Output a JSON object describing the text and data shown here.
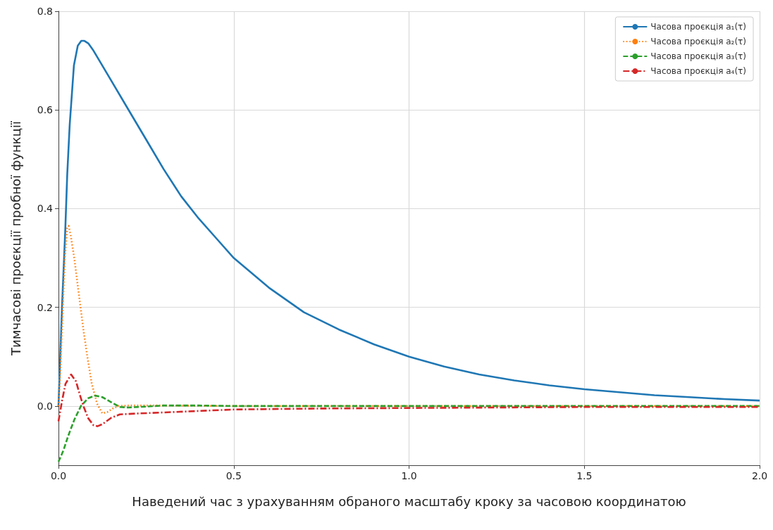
{
  "chart_data": {
    "type": "line",
    "xlabel": "Наведений час з урахуванням обраного масштабу кроку за часовою координатою",
    "ylabel": "Тимчасові проєкції пробної функції",
    "xlim": [
      0,
      2.0
    ],
    "xticks": [
      {
        "value": 0,
        "label": "0.0"
      },
      0.5,
      {
        "value": 1,
        "label": "1.0"
      },
      1.5,
      {
        "value": 2,
        "label": "2.0"
      }
    ],
    "ylim": [
      -0.12,
      0.8
    ],
    "yticks": [
      {
        "value": 0,
        "label": "0.0"
      },
      0.2,
      0.4,
      0.6,
      0.8
    ],
    "grid": true,
    "legend": "top right",
    "marker": "none",
    "series": [
      {
        "name": "Часова проєкція a₁(τ)",
        "color": "#1f77b4",
        "line_style": "solid",
        "x": [
          0,
          0.005,
          0.01,
          0.019,
          0.025,
          0.032,
          0.044,
          0.055,
          0.065,
          0.074,
          0.085,
          0.1,
          0.15,
          0.2,
          0.25,
          0.3,
          0.35,
          0.4,
          0.45,
          0.5,
          0.6,
          0.7,
          0.8,
          0.9,
          1.0,
          1.1,
          1.2,
          1.3,
          1.4,
          1.5,
          1.6,
          1.7,
          1.8,
          1.9,
          2.0
        ],
        "values": [
          0,
          0.1,
          0.2,
          0.35,
          0.47,
          0.57,
          0.69,
          0.73,
          0.74,
          0.74,
          0.735,
          0.72,
          0.66,
          0.6,
          0.54,
          0.48,
          0.425,
          0.38,
          0.34,
          0.3,
          0.24,
          0.19,
          0.155,
          0.125,
          0.1,
          0.08,
          0.064,
          0.052,
          0.042,
          0.034,
          0.028,
          0.022,
          0.018,
          0.014,
          0.011
        ]
      },
      {
        "name": "Часова проєкція a₂(τ)",
        "color": "#ff7f0e",
        "line_style": "dotted",
        "x": [
          0,
          0.005,
          0.01,
          0.018,
          0.025,
          0.029,
          0.035,
          0.045,
          0.06,
          0.072,
          0.083,
          0.095,
          0.11,
          0.125,
          0.14,
          0.155,
          0.17,
          0.2,
          0.3,
          0.5,
          1.0,
          1.5,
          2.0
        ],
        "values": [
          0,
          0.07,
          0.157,
          0.3,
          0.36,
          0.365,
          0.345,
          0.3,
          0.216,
          0.15,
          0.097,
          0.045,
          0.005,
          -0.015,
          -0.012,
          -0.005,
          0,
          0.001,
          0.001,
          0,
          0,
          0,
          0
        ]
      },
      {
        "name": "Часова проєкція a₃(τ)",
        "color": "#2ca02c",
        "line_style": "dashed",
        "x": [
          0,
          0.014,
          0.028,
          0.045,
          0.064,
          0.085,
          0.105,
          0.125,
          0.15,
          0.175,
          0.2,
          0.25,
          0.3,
          0.4,
          0.5,
          1.0,
          1.5,
          2.0
        ],
        "values": [
          -0.113,
          -0.09,
          -0.06,
          -0.028,
          0,
          0.016,
          0.021,
          0.018,
          0.008,
          -0.002,
          -0.003,
          -0.001,
          0.001,
          0.001,
          0,
          0,
          0,
          0
        ]
      },
      {
        "name": "Часова проєкція a₄(τ)",
        "color": "#d62728",
        "line_style": "dashdot",
        "x": [
          0,
          0.01,
          0.02,
          0.036,
          0.05,
          0.06,
          0.071,
          0.085,
          0.1,
          0.111,
          0.125,
          0.15,
          0.175,
          0.229,
          0.3,
          0.5,
          0.75,
          1.0,
          1.5,
          2.0
        ],
        "values": [
          -0.031,
          0.01,
          0.045,
          0.064,
          0.05,
          0.025,
          0,
          -0.025,
          -0.039,
          -0.041,
          -0.037,
          -0.024,
          -0.017,
          -0.015,
          -0.013,
          -0.007,
          -0.005,
          -0.004,
          -0.002,
          -0.002
        ]
      }
    ]
  }
}
